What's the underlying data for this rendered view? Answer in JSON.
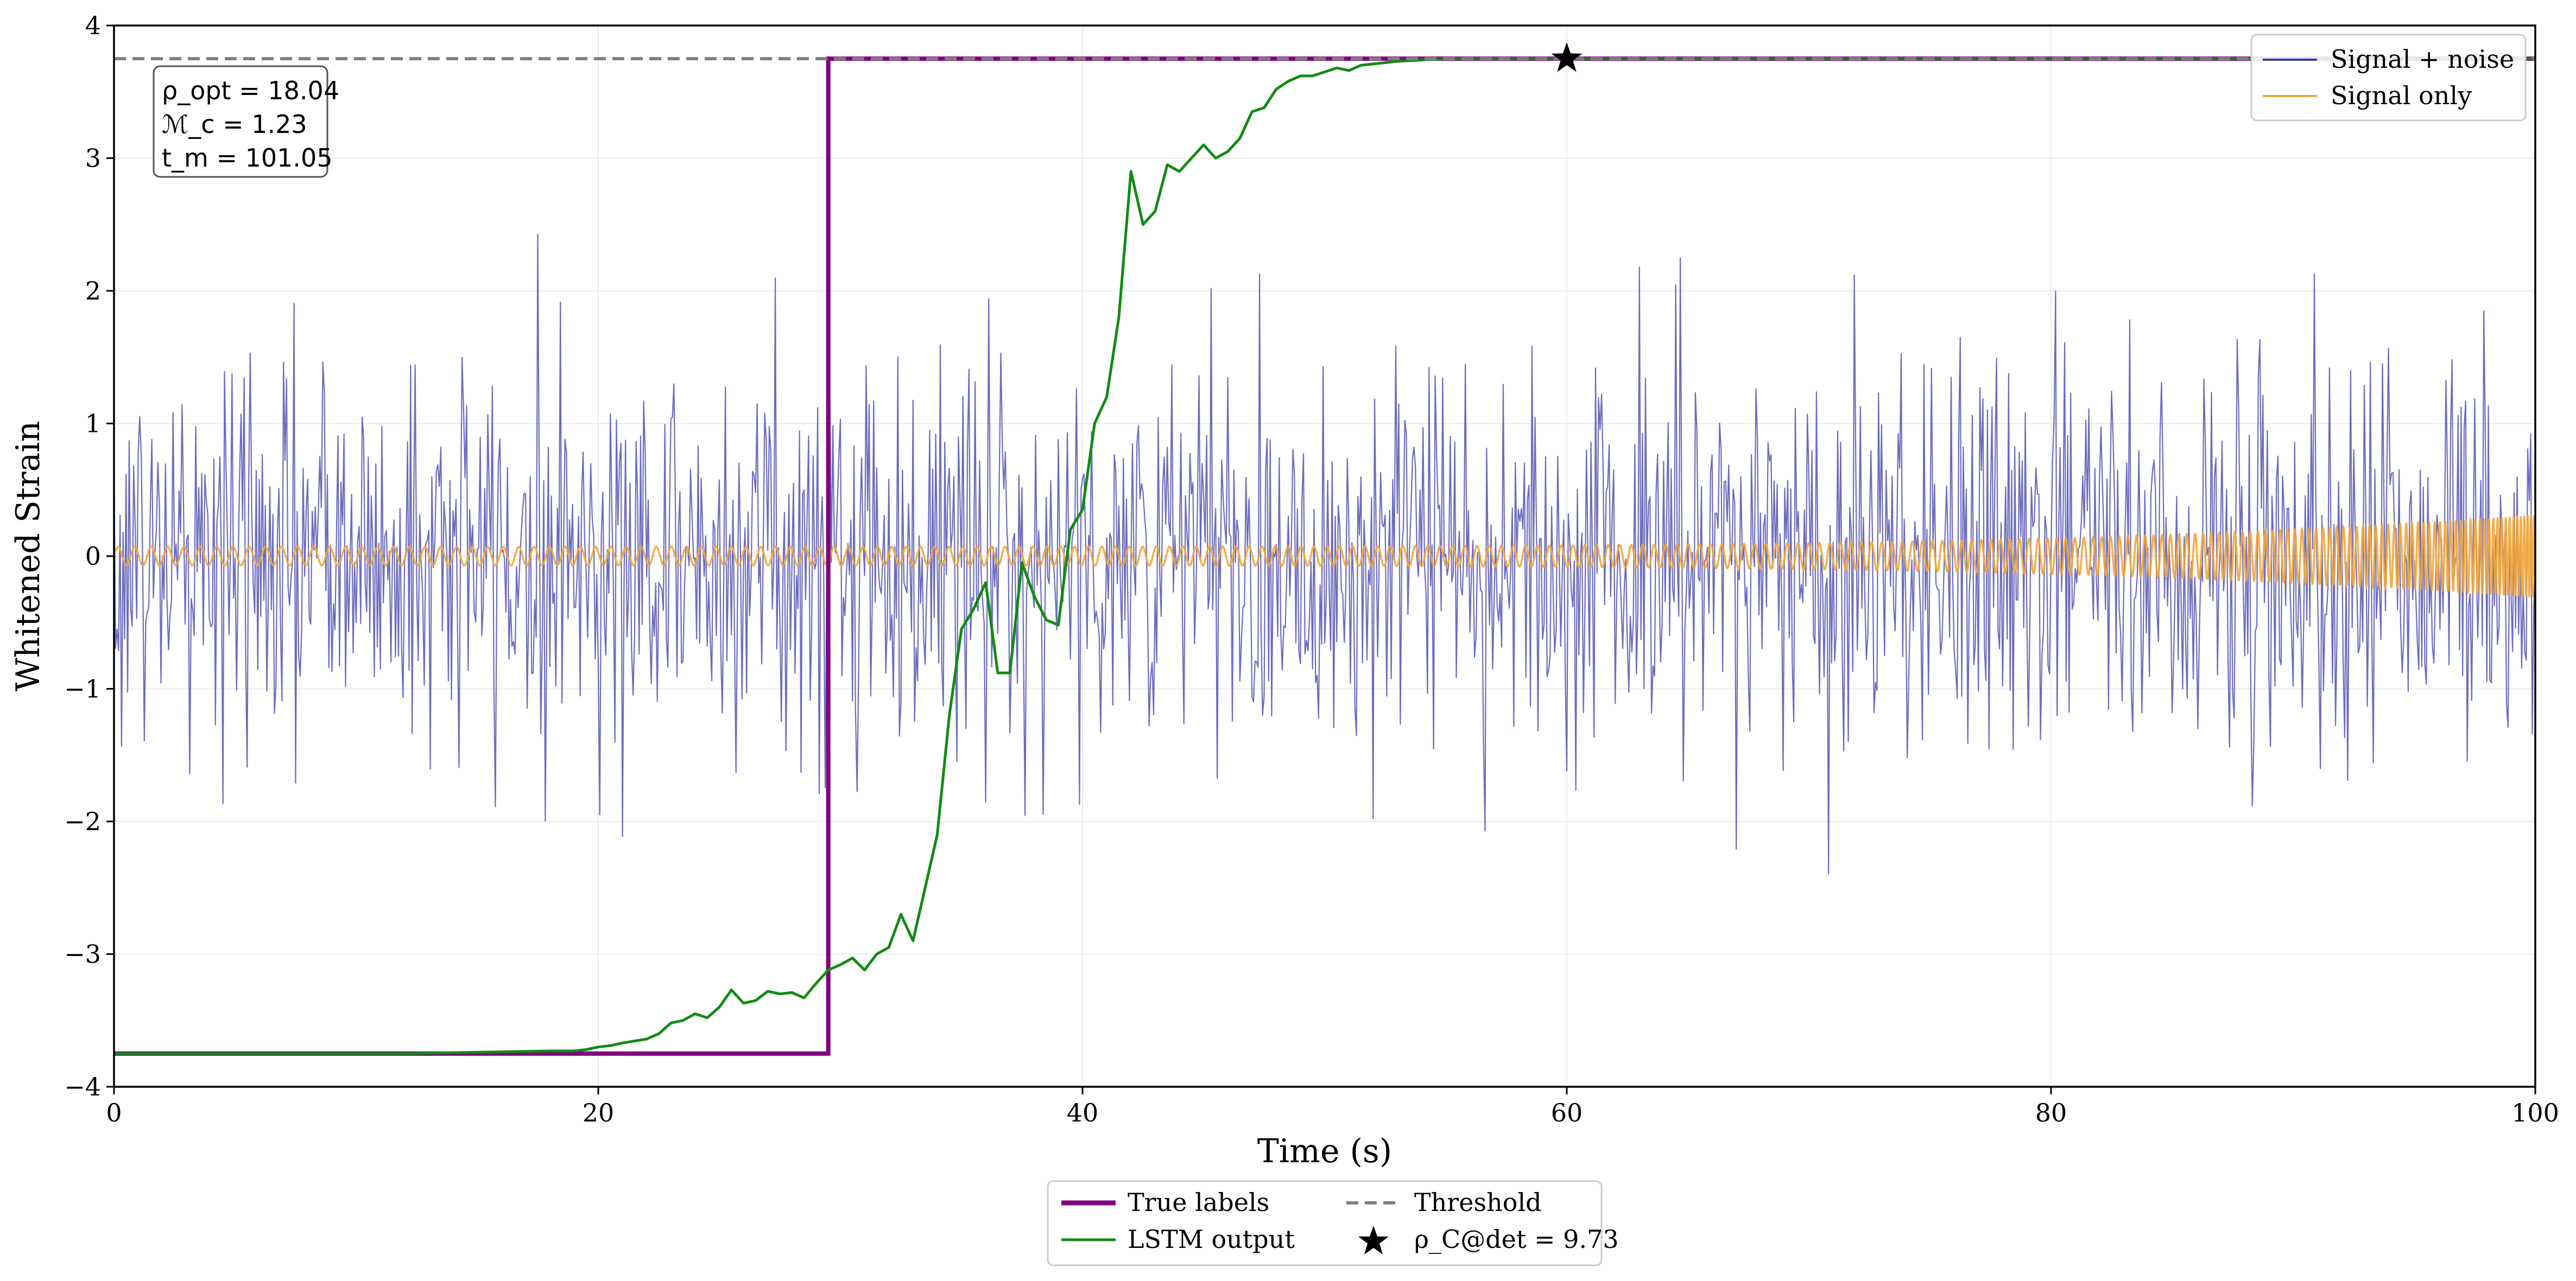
{
  "chart_data": {
    "type": "line",
    "title": "",
    "xlabel": "Time (s)",
    "ylabel": "Whitened Strain",
    "xlim": [
      0,
      100
    ],
    "ylim": [
      -4,
      4
    ],
    "xticks": [
      0,
      20,
      40,
      60,
      80,
      100
    ],
    "xtick_labels": [
      "0",
      "20",
      "40",
      "60",
      "80",
      "100"
    ],
    "yticks": [
      -4,
      -3,
      -2,
      -1,
      0,
      1,
      2,
      3,
      4
    ],
    "ytick_labels": [
      "−4",
      "−3",
      "−2",
      "−1",
      "0",
      "1",
      "2",
      "3",
      "4"
    ],
    "grid": true,
    "legend_upper": {
      "placement": "top-right",
      "entries": [
        {
          "label": "Signal + noise",
          "color": "#3b3ba8"
        },
        {
          "label": "Signal only",
          "color": "#f2a53a"
        }
      ]
    },
    "legend_lower": {
      "placement": "bottom-center",
      "entries": [
        {
          "label": "True labels",
          "color": "#800080",
          "style": "solid"
        },
        {
          "label": "Threshold",
          "color": "#808080",
          "style": "dashed"
        },
        {
          "label": "LSTM output",
          "color": "#138a13",
          "style": "solid"
        },
        {
          "label": "ρ_C@det = 9.73",
          "color": "#000000",
          "style": "star-marker"
        }
      ]
    },
    "annotation_box": {
      "placement": "top-left",
      "lines": [
        "ρ_opt = 18.04",
        "ℳ_c = 1.23",
        "t_m = 101.05"
      ]
    },
    "threshold": {
      "name": "Threshold",
      "y": 3.75,
      "color": "#808080"
    },
    "detection_marker": {
      "label": "ρ_C@det = 9.73",
      "x": 60,
      "y": 3.75,
      "color": "#000000"
    },
    "series": [
      {
        "name": "Signal + noise",
        "color": "#3b3ba8",
        "kind": "noise",
        "x_range": [
          0,
          100
        ],
        "n_points": 1600,
        "noise_std": 0.75,
        "clip": [
          -2.9,
          3.3
        ]
      },
      {
        "name": "Signal only",
        "color": "#f2a53a",
        "kind": "chirp",
        "x_range": [
          0,
          100
        ],
        "merger_time": 101.05,
        "amplitude_start": 0.07,
        "amplitude_end": 0.33
      },
      {
        "name": "True labels",
        "color": "#800080",
        "x": [
          0,
          29.5,
          29.5,
          100
        ],
        "y": [
          -3.75,
          -3.75,
          3.75,
          3.75
        ]
      },
      {
        "name": "LSTM output",
        "color": "#138a13",
        "x": [
          0,
          12,
          15,
          18,
          19,
          19.5,
          20,
          20.5,
          21,
          22,
          22.5,
          23,
          23.5,
          24,
          24.5,
          25,
          25.5,
          26,
          26.5,
          27,
          27.5,
          28,
          28.5,
          29,
          29.5,
          30,
          30.5,
          31,
          31.5,
          32,
          32.5,
          33,
          33.5,
          34,
          34.5,
          35,
          35.5,
          36,
          36.5,
          37,
          37.5,
          38,
          38.5,
          39,
          39.5,
          40,
          40.5,
          41,
          41.5,
          42,
          42.5,
          43,
          43.5,
          44,
          44.5,
          45,
          45.5,
          46,
          46.5,
          47,
          47.5,
          48,
          48.5,
          49,
          49.5,
          50,
          50.5,
          51,
          51.5,
          52,
          52.5,
          53,
          54,
          55,
          56,
          57,
          58,
          59,
          60,
          70,
          80,
          90,
          100
        ],
        "y": [
          -3.75,
          -3.75,
          -3.74,
          -3.73,
          -3.73,
          -3.72,
          -3.7,
          -3.69,
          -3.67,
          -3.64,
          -3.6,
          -3.52,
          -3.5,
          -3.45,
          -3.48,
          -3.4,
          -3.27,
          -3.37,
          -3.35,
          -3.28,
          -3.3,
          -3.29,
          -3.33,
          -3.22,
          -3.12,
          -3.08,
          -3.03,
          -3.12,
          -3.0,
          -2.95,
          -2.7,
          -2.9,
          -2.5,
          -2.1,
          -1.2,
          -0.55,
          -0.4,
          -0.2,
          -0.88,
          -0.88,
          -0.05,
          -0.3,
          -0.48,
          -0.52,
          0.2,
          0.35,
          1.0,
          1.2,
          1.8,
          2.9,
          2.5,
          2.6,
          2.95,
          2.9,
          3.0,
          3.1,
          3.0,
          3.05,
          3.15,
          3.35,
          3.38,
          3.52,
          3.58,
          3.62,
          3.62,
          3.65,
          3.68,
          3.66,
          3.7,
          3.71,
          3.72,
          3.73,
          3.74,
          3.75,
          3.75,
          3.75,
          3.75,
          3.75,
          3.75,
          3.75,
          3.75,
          3.75,
          3.75
        ]
      }
    ]
  }
}
